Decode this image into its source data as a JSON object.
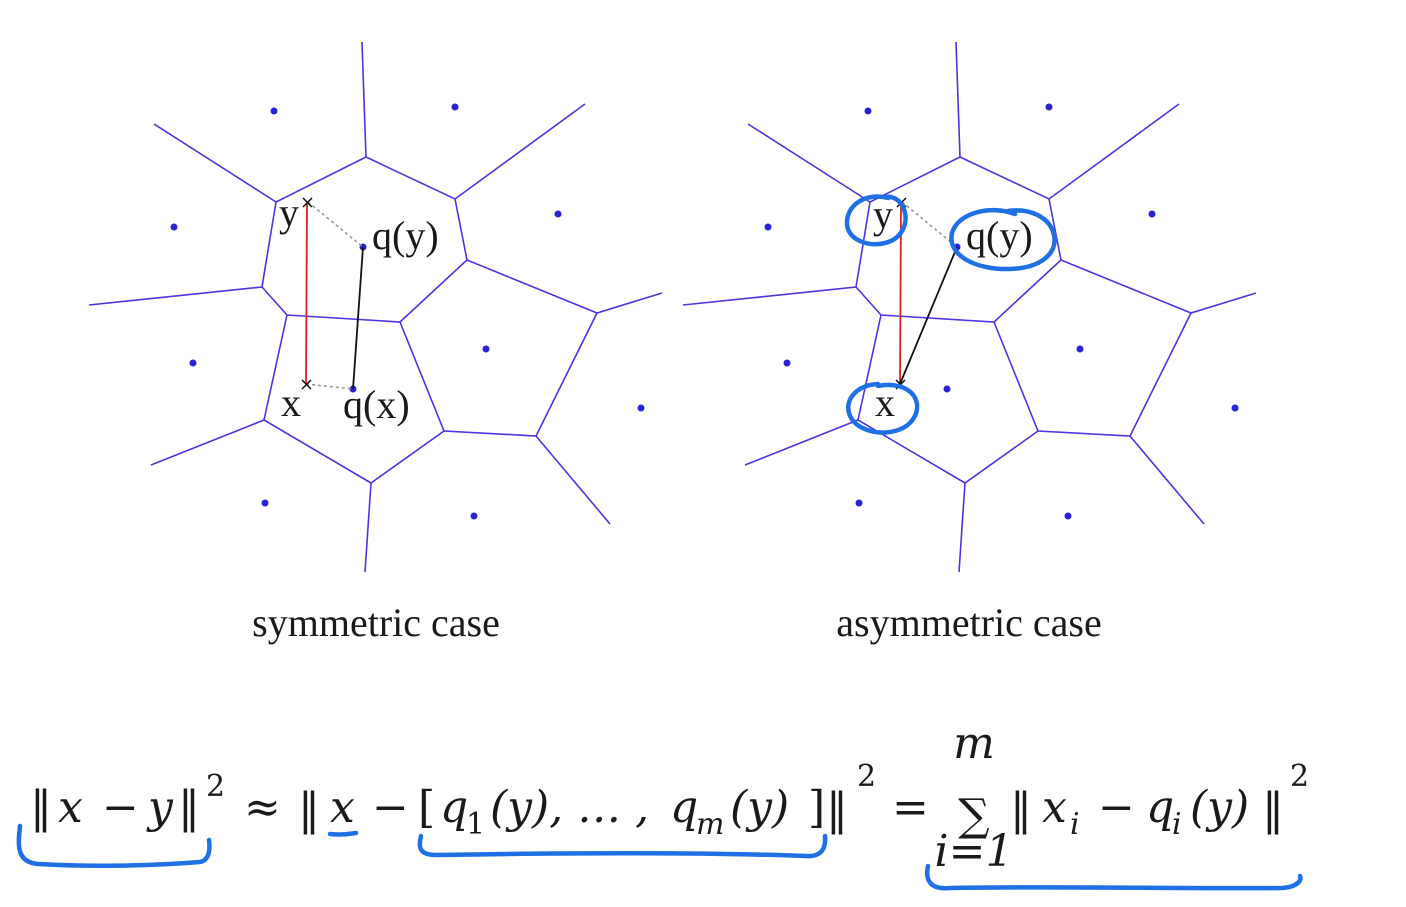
{
  "colors": {
    "voronoi_edge": "#4b35e0",
    "centroid": "#2a22d8",
    "distance_line": "#e02020",
    "quantized_line": "#111111",
    "assignment_line": "#999999",
    "annotation": "#1f6fe5"
  },
  "left_panel": {
    "caption": "symmetric case",
    "label_y": "y",
    "label_qy": "q(y)",
    "label_x": "x",
    "label_qx": "q(x)"
  },
  "right_panel": {
    "caption": "asymmetric case",
    "label_y": "y",
    "label_qy": "q(y)",
    "label_x": "x"
  },
  "formula": {
    "lhs_norm_open": "‖",
    "lhs_x": "x",
    "lhs_minus": "−",
    "lhs_y": "y",
    "lhs_norm_close": "‖",
    "lhs_exp": "2",
    "approx": "≈",
    "mid_norm_open": "‖",
    "mid_x": "x",
    "mid_minus": "−",
    "mid_bracket_open": "[",
    "mid_q1": "q",
    "mid_q1_sub": "1",
    "mid_q1_arg": "(y), … ,",
    "mid_qm": "q",
    "mid_qm_sub": "m",
    "mid_qm_arg": "(y)",
    "mid_bracket_close": "]",
    "mid_norm_close": "‖",
    "mid_exp": "2",
    "equals": "=",
    "sum_symbol": "∑",
    "sum_upper": "m",
    "sum_lower": "i=1",
    "rhs_norm_open": "‖",
    "rhs_x": "x",
    "rhs_x_sub": "i",
    "rhs_minus": "−",
    "rhs_q": "q",
    "rhs_q_sub": "i",
    "rhs_arg": "(y)",
    "rhs_norm_close": "‖",
    "rhs_exp": "2"
  }
}
